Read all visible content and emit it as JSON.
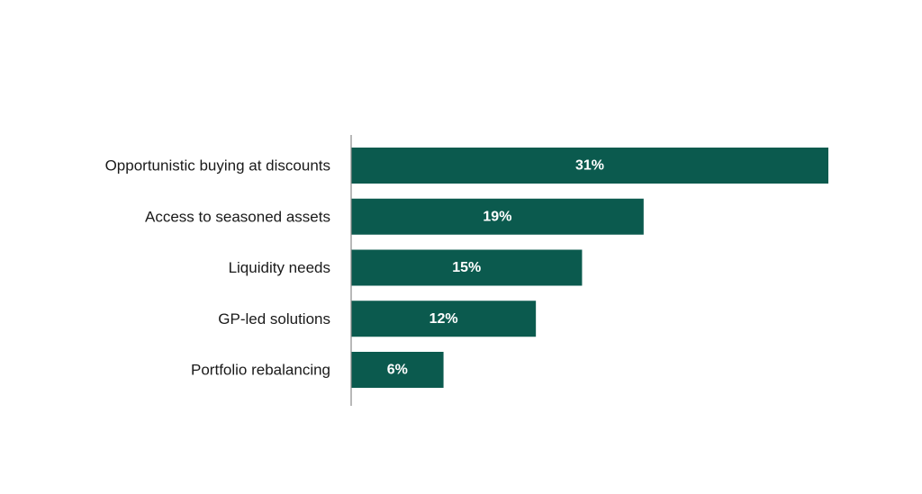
{
  "chart_data": {
    "type": "bar",
    "orientation": "horizontal",
    "categories": [
      "Opportunistic buying at discounts",
      "Access to seasoned assets",
      "Liquidity needs",
      "GP-led solutions",
      "Portfolio rebalancing"
    ],
    "values": [
      31,
      19,
      15,
      12,
      6
    ],
    "value_labels": [
      "31%",
      "19%",
      "15%",
      "12%",
      "6%"
    ],
    "unit": "%",
    "title": "",
    "xlabel": "",
    "ylabel": "",
    "xlim": [
      0,
      31
    ],
    "grid": false,
    "legend": "none",
    "bar_color": "#0b5a4e",
    "axis_color": "#888888"
  }
}
